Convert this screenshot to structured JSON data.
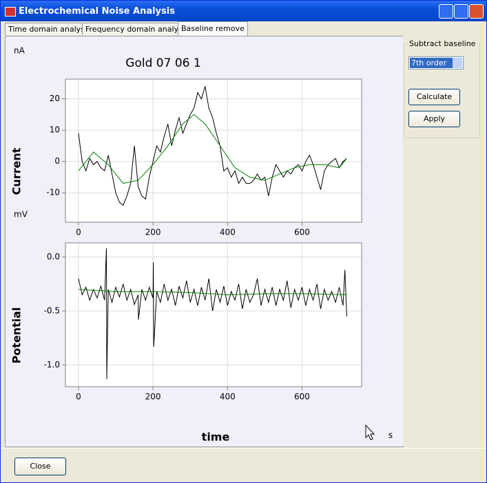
{
  "window": {
    "title": "Electrochemical Noise Analysis"
  },
  "tabs": [
    "Time domain analysis",
    "Frequency domain analysis",
    "Baseline remove"
  ],
  "panel": {
    "group": "Subtract baseline",
    "select": "7th order",
    "buttons": [
      "Calculate",
      "Apply"
    ]
  },
  "footer": {
    "button": "Close"
  },
  "chart_data": [
    {
      "type": "line",
      "title": "Gold 07 06 1",
      "y_unit": "nA",
      "y_label": "Current",
      "xlim": [
        -35,
        760
      ],
      "xticks": [
        0,
        200,
        400,
        600
      ],
      "ylim": [
        -19.4,
        26.3
      ],
      "yticks": [
        -10,
        0,
        10,
        20
      ],
      "grid": true,
      "series": [
        {
          "color": "#000000",
          "x": [
            0,
            10,
            20,
            30,
            40,
            50,
            60,
            70,
            80,
            90,
            100,
            110,
            120,
            130,
            140,
            150,
            160,
            170,
            180,
            190,
            200,
            210,
            220,
            230,
            240,
            250,
            260,
            270,
            280,
            290,
            300,
            310,
            320,
            330,
            340,
            350,
            360,
            370,
            380,
            390,
            400,
            410,
            420,
            430,
            440,
            450,
            460,
            470,
            480,
            490,
            500,
            510,
            520,
            530,
            540,
            550,
            560,
            570,
            580,
            590,
            600,
            610,
            620,
            630,
            640,
            650,
            660,
            670,
            680,
            690,
            700,
            710,
            720
          ],
          "values": [
            9,
            0,
            -3,
            1,
            -1,
            0,
            -2,
            -3,
            2,
            -4,
            -10,
            -13,
            -14,
            -11,
            -7,
            5,
            -8,
            -11,
            -12,
            -5,
            0,
            5,
            3,
            8,
            12,
            5,
            10,
            14,
            9,
            12,
            15,
            17,
            22,
            20,
            24,
            17,
            14,
            9,
            5,
            -3,
            -2,
            -5,
            -3,
            -7,
            -5,
            -7,
            -7,
            -6,
            -4,
            -6,
            -5,
            -11,
            -5,
            -1,
            -3,
            -5,
            -3,
            -4,
            -2,
            -1,
            -3,
            0,
            2,
            -1,
            -5,
            -9,
            -3,
            -1,
            0,
            1,
            -2,
            0,
            1
          ]
        },
        {
          "color": "#008000",
          "x": [
            0,
            40,
            80,
            120,
            160,
            200,
            240,
            280,
            310,
            340,
            380,
            420,
            460,
            500,
            540,
            580,
            620,
            660,
            700,
            720
          ],
          "values": [
            -3,
            3,
            -1,
            -7,
            -6,
            -1,
            5,
            12,
            15,
            12,
            5,
            -2,
            -5,
            -6,
            -4,
            -2,
            -1,
            -1,
            -2,
            1
          ]
        }
      ]
    },
    {
      "type": "line",
      "y_unit": "mV",
      "y_label": "Potential",
      "x_label": "time",
      "x_unit": "s",
      "xlim": [
        -35,
        760
      ],
      "xticks": [
        0,
        200,
        400,
        600
      ],
      "ylim": [
        -1.2,
        0.13
      ],
      "yticks": [
        {
          "value": 0,
          "label": "0.0"
        },
        -0.5,
        {
          "value": -1,
          "label": "-1.0"
        }
      ],
      "grid": true,
      "series": [
        {
          "color": "#000000",
          "x": [
            0,
            10,
            20,
            30,
            40,
            50,
            60,
            70,
            75,
            76,
            80,
            90,
            100,
            110,
            120,
            130,
            140,
            150,
            160,
            161,
            170,
            180,
            190,
            200,
            201,
            202,
            210,
            220,
            230,
            240,
            250,
            260,
            270,
            280,
            290,
            300,
            310,
            320,
            330,
            340,
            350,
            360,
            370,
            380,
            390,
            400,
            410,
            420,
            430,
            440,
            450,
            460,
            470,
            480,
            490,
            500,
            510,
            520,
            530,
            540,
            550,
            560,
            570,
            580,
            590,
            600,
            610,
            620,
            630,
            640,
            650,
            660,
            670,
            680,
            690,
            700,
            710,
            715,
            720
          ],
          "values": [
            -0.2,
            -0.35,
            -0.28,
            -0.4,
            -0.3,
            -0.38,
            -0.27,
            -0.4,
            0.08,
            -1.13,
            -0.3,
            -0.42,
            -0.28,
            -0.37,
            -0.25,
            -0.4,
            -0.3,
            -0.44,
            -0.35,
            -0.58,
            -0.3,
            -0.4,
            -0.28,
            -0.38,
            -0.05,
            -0.83,
            -0.32,
            -0.42,
            -0.25,
            -0.4,
            -0.3,
            -0.45,
            -0.27,
            -0.38,
            -0.22,
            -0.42,
            -0.3,
            -0.45,
            -0.28,
            -0.4,
            -0.2,
            -0.5,
            -0.3,
            -0.42,
            -0.27,
            -0.45,
            -0.32,
            -0.4,
            -0.25,
            -0.48,
            -0.3,
            -0.42,
            -0.35,
            -0.2,
            -0.45,
            -0.3,
            -0.42,
            -0.28,
            -0.45,
            -0.3,
            -0.4,
            -0.22,
            -0.47,
            -0.3,
            -0.4,
            -0.28,
            -0.45,
            -0.3,
            -0.4,
            -0.25,
            -0.48,
            -0.3,
            -0.4,
            -0.32,
            -0.42,
            -0.28,
            -0.45,
            -0.12,
            -0.55
          ]
        },
        {
          "color": "#008000",
          "x": [
            0,
            100,
            200,
            300,
            400,
            500,
            600,
            720
          ],
          "values": [
            -0.3,
            -0.32,
            -0.32,
            -0.33,
            -0.35,
            -0.34,
            -0.34,
            -0.35
          ]
        }
      ]
    }
  ]
}
